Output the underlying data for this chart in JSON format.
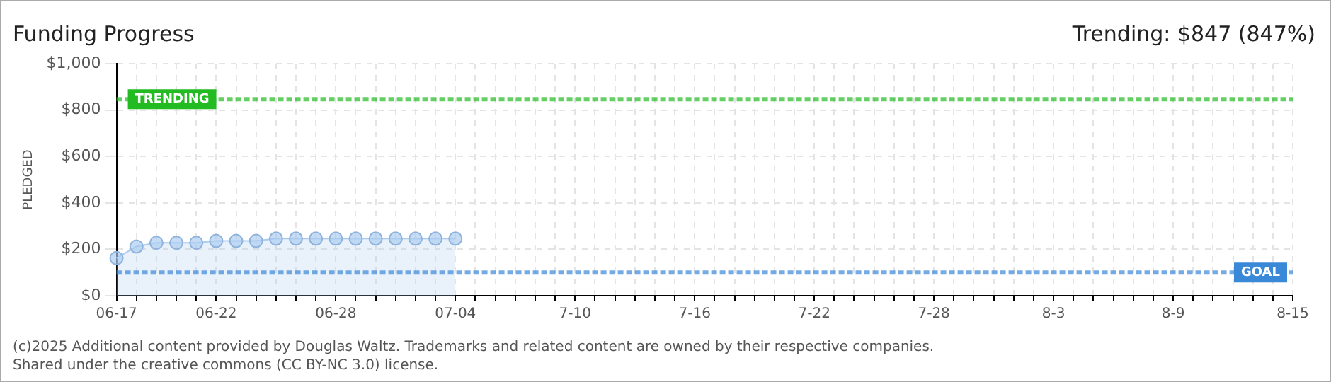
{
  "chart_data": {
    "type": "area",
    "title": "Funding Progress",
    "subtitle": "Trending: $847 (847%)",
    "ylabel": "PLEDGED",
    "categories": [
      "06-17",
      null,
      null,
      null,
      null,
      "06-22",
      null,
      null,
      null,
      null,
      null,
      "06-28",
      null,
      null,
      null,
      null,
      null,
      "07-04",
      null,
      null,
      null,
      null,
      null,
      "7-10",
      null,
      null,
      null,
      null,
      null,
      "7-16",
      null,
      null,
      null,
      null,
      null,
      "7-22",
      null,
      null,
      null,
      null,
      null,
      "7-28",
      null,
      null,
      null,
      null,
      null,
      "8-3",
      null,
      null,
      null,
      null,
      null,
      "8-9",
      null,
      null,
      null,
      null,
      null,
      "8-15"
    ],
    "series": [
      {
        "color": "#a9cbf0",
        "values": [
          162,
          212,
          228,
          228,
          228,
          236,
          236,
          236,
          246,
          246,
          246,
          246,
          246,
          246,
          246,
          246,
          246,
          246,
          null,
          null,
          null,
          null,
          null,
          null,
          null,
          null,
          null,
          null,
          null,
          null,
          null,
          null,
          null,
          null,
          null,
          null,
          null,
          null,
          null,
          null,
          null,
          null,
          null,
          null,
          null,
          null,
          null,
          null,
          null,
          null,
          null,
          null,
          null,
          null,
          null,
          null,
          null,
          null,
          null,
          null
        ]
      }
    ],
    "ylim": [
      0,
      1000
    ],
    "yticks": [
      {
        "value": 0,
        "label": "$0"
      },
      {
        "value": 200,
        "label": "$200"
      },
      {
        "value": 400,
        "label": "$400"
      },
      {
        "value": 600,
        "label": "$600"
      },
      {
        "value": 800,
        "label": "$800"
      },
      {
        "value": 1000,
        "label": "$1,000"
      }
    ],
    "grid": true,
    "marker": "circle",
    "legend": false,
    "ref_lines": [
      {
        "axis": "y",
        "value": 847,
        "label": "TRENDING",
        "color": "#22bb22",
        "line_style": "dashed"
      },
      {
        "axis": "y",
        "value": 100,
        "label": "GOAL",
        "color": "#3a88d8",
        "line_style": "dashed"
      }
    ],
    "annotations": [
      "(c)2025 Additional content provided by Douglas Waltz. Trademarks and related content are owned by their respective companies.",
      "Shared under the creative commons (CC BY-NC 3.0) license."
    ]
  }
}
